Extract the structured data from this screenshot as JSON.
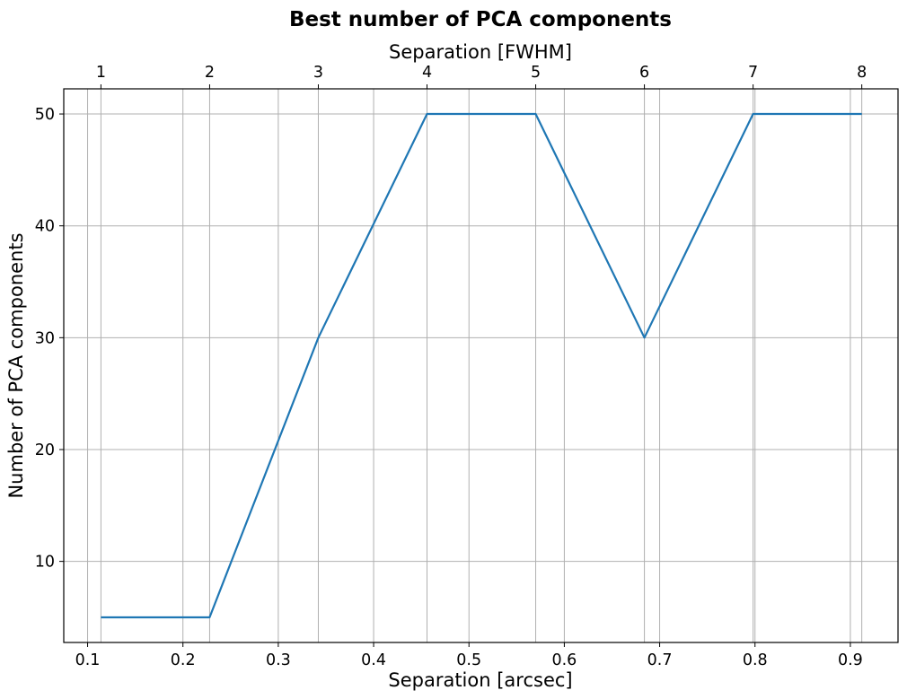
{
  "chart_data": {
    "type": "line",
    "title": "Best number of PCA components",
    "xlabel": "Separation [arcsec]",
    "ylabel": "Number of PCA components",
    "x2label": "Separation [FWHM]",
    "x": [
      0.114,
      0.228,
      0.342,
      0.456,
      0.57,
      0.684,
      0.798,
      0.912
    ],
    "x2": [
      1,
      2,
      3,
      4,
      5,
      6,
      7,
      8
    ],
    "y": [
      5,
      5,
      30,
      50,
      50,
      30,
      50,
      50
    ],
    "xlim": [
      0.075,
      0.95
    ],
    "ylim": [
      2.75,
      52.25
    ],
    "xticks": [
      "0.1",
      "0.2",
      "0.3",
      "0.4",
      "0.5",
      "0.6",
      "0.7",
      "0.8",
      "0.9"
    ],
    "x2ticks": [
      "1",
      "2",
      "3",
      "4",
      "5",
      "6",
      "7",
      "8"
    ],
    "yticks": [
      "10",
      "20",
      "30",
      "40",
      "50"
    ],
    "grid": true,
    "line_color": "#1f77b4"
  }
}
